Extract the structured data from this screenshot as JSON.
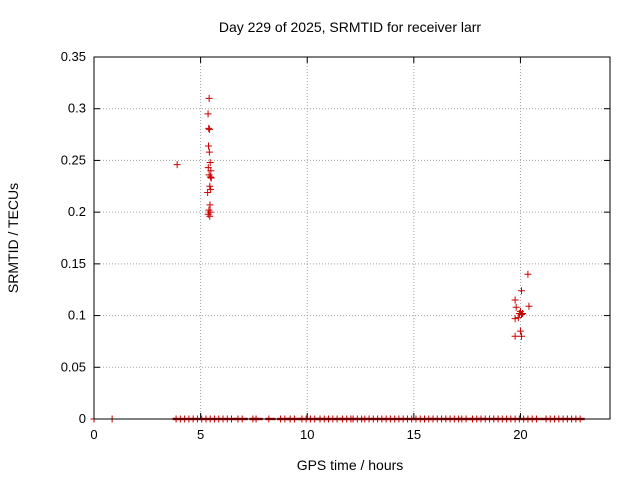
{
  "chart_data": {
    "type": "scatter",
    "title": "Day 229 of 2025, SRMTID for receiver larr",
    "xlabel": "GPS time / hours",
    "ylabel": "SRMTID / TECUs",
    "xlim": [
      0,
      24.2
    ],
    "ylim": [
      0,
      0.35
    ],
    "xticks": [
      0,
      5,
      10,
      15,
      20
    ],
    "xtick_labels": [
      "0",
      "5",
      "10",
      "15",
      "20"
    ],
    "yticks": [
      0,
      0.05,
      0.1,
      0.15,
      0.2,
      0.25,
      0.3,
      0.35
    ],
    "ytick_labels": [
      "0",
      "0.05",
      "0.1",
      "0.15",
      "0.2",
      "0.25",
      "0.3",
      "0.35"
    ],
    "grid": true,
    "legend": "none",
    "marker": "plus",
    "color": "#cc0000",
    "points": [
      {
        "x": 3.9,
        "y": 0.246
      },
      {
        "x": 5.4,
        "y": 0.31
      },
      {
        "x": 5.35,
        "y": 0.295
      },
      {
        "x": 5.38,
        "y": 0.281
      },
      {
        "x": 5.42,
        "y": 0.28
      },
      {
        "x": 5.37,
        "y": 0.264
      },
      {
        "x": 5.41,
        "y": 0.258
      },
      {
        "x": 5.45,
        "y": 0.248
      },
      {
        "x": 5.36,
        "y": 0.243
      },
      {
        "x": 5.48,
        "y": 0.24
      },
      {
        "x": 5.4,
        "y": 0.236
      },
      {
        "x": 5.46,
        "y": 0.234
      },
      {
        "x": 5.5,
        "y": 0.233
      },
      {
        "x": 5.43,
        "y": 0.225
      },
      {
        "x": 5.47,
        "y": 0.222
      },
      {
        "x": 5.33,
        "y": 0.219
      },
      {
        "x": 5.44,
        "y": 0.207
      },
      {
        "x": 5.39,
        "y": 0.202
      },
      {
        "x": 5.45,
        "y": 0.2
      },
      {
        "x": 5.36,
        "y": 0.198
      },
      {
        "x": 5.43,
        "y": 0.196
      },
      {
        "x": 20.35,
        "y": 0.14
      },
      {
        "x": 20.05,
        "y": 0.124
      },
      {
        "x": 19.75,
        "y": 0.115
      },
      {
        "x": 20.4,
        "y": 0.109
      },
      {
        "x": 19.8,
        "y": 0.108
      },
      {
        "x": 20.0,
        "y": 0.104
      },
      {
        "x": 19.95,
        "y": 0.102
      },
      {
        "x": 20.05,
        "y": 0.101
      },
      {
        "x": 20.1,
        "y": 0.102
      },
      {
        "x": 19.75,
        "y": 0.097
      },
      {
        "x": 19.9,
        "y": 0.098
      },
      {
        "x": 20.0,
        "y": 0.085
      },
      {
        "x": 19.75,
        "y": 0.08
      },
      {
        "x": 20.05,
        "y": 0.08
      },
      {
        "x": 0.0,
        "y": 0.0
      },
      {
        "x": 0.85,
        "y": 0.0
      }
    ],
    "zero_bands": [
      [
        3.85,
        6.5
      ],
      [
        6.75,
        7.05
      ],
      [
        7.45,
        7.55
      ],
      [
        7.6,
        7.75
      ],
      [
        8.2,
        8.35
      ],
      [
        8.75,
        9.05
      ],
      [
        9.2,
        9.55
      ],
      [
        9.75,
        10.5
      ],
      [
        10.6,
        10.9
      ],
      [
        11.0,
        11.55
      ],
      [
        11.65,
        12.05
      ],
      [
        12.15,
        12.6
      ],
      [
        12.7,
        15.7
      ],
      [
        15.9,
        17.1
      ],
      [
        17.25,
        17.6
      ],
      [
        17.75,
        18.05
      ],
      [
        18.15,
        20.9
      ],
      [
        21.2,
        22.85
      ]
    ]
  }
}
